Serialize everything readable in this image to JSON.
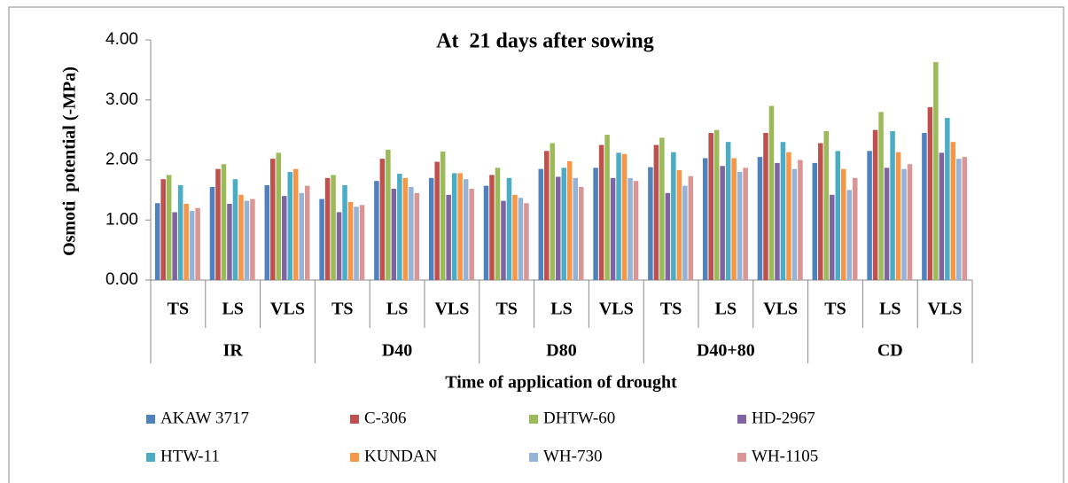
{
  "chart_data": {
    "type": "bar",
    "title": "At  21 days after sowing",
    "x_label": "Time of application of drought",
    "y_label": "Osmoti  potential (-MPa)",
    "categories": [
      "TS",
      "LS",
      "VLS",
      "TS",
      "LS",
      "VLS",
      "TS",
      "LS",
      "VLS",
      "TS",
      "LS",
      "VLS",
      "TS",
      "LS",
      "VLS"
    ],
    "groups": [
      "IR",
      "D40",
      "D80",
      "D40+80",
      "CD"
    ],
    "ylim": [
      0,
      4
    ],
    "yticks": [
      {
        "value": 0,
        "label": "0.00"
      },
      {
        "value": 1,
        "label": "1.00"
      },
      {
        "value": 2,
        "label": "2.00"
      },
      {
        "value": 3,
        "label": "3.00"
      },
      {
        "value": 4,
        "label": "4.00"
      }
    ],
    "grid": false,
    "series": [
      {
        "name": "AKAW 3717",
        "color": "#4f81bd",
        "values": [
          1.28,
          1.55,
          1.58,
          1.35,
          1.65,
          1.7,
          1.57,
          1.85,
          1.87,
          1.88,
          2.03,
          2.05,
          1.95,
          2.15,
          2.45
        ]
      },
      {
        "name": "C-306",
        "color": "#c0504d",
        "values": [
          1.68,
          1.85,
          2.02,
          1.7,
          2.02,
          1.97,
          1.75,
          2.15,
          2.25,
          2.25,
          2.45,
          2.45,
          2.28,
          2.5,
          2.88
        ]
      },
      {
        "name": "DHTW-60",
        "color": "#9bbb59",
        "values": [
          1.75,
          1.93,
          2.12,
          1.75,
          2.17,
          2.14,
          1.87,
          2.28,
          2.42,
          2.37,
          2.5,
          2.9,
          2.48,
          2.8,
          3.63
        ]
      },
      {
        "name": "HD-2967",
        "color": "#8064a2",
        "values": [
          1.13,
          1.27,
          1.4,
          1.13,
          1.52,
          1.42,
          1.32,
          1.72,
          1.7,
          1.45,
          1.9,
          1.95,
          1.42,
          1.87,
          2.12
        ]
      },
      {
        "name": "HTW-11",
        "color": "#4bacc6",
        "values": [
          1.58,
          1.68,
          1.8,
          1.58,
          1.77,
          1.78,
          1.7,
          1.87,
          2.12,
          2.13,
          2.3,
          2.3,
          2.15,
          2.48,
          2.7
        ]
      },
      {
        "name": "KUNDAN",
        "color": "#f79646",
        "values": [
          1.27,
          1.42,
          1.85,
          1.3,
          1.7,
          1.78,
          1.42,
          1.98,
          2.1,
          1.83,
          2.03,
          2.13,
          1.85,
          2.13,
          2.3
        ]
      },
      {
        "name": "WH-730",
        "color": "#95b3d7",
        "values": [
          1.15,
          1.32,
          1.45,
          1.22,
          1.55,
          1.68,
          1.37,
          1.7,
          1.7,
          1.57,
          1.8,
          1.85,
          1.5,
          1.85,
          2.02
        ]
      },
      {
        "name": "WH-1105",
        "color": "#d99694",
        "values": [
          1.2,
          1.35,
          1.57,
          1.25,
          1.45,
          1.52,
          1.28,
          1.55,
          1.65,
          1.73,
          1.87,
          2.0,
          1.7,
          1.93,
          2.05
        ]
      }
    ]
  }
}
